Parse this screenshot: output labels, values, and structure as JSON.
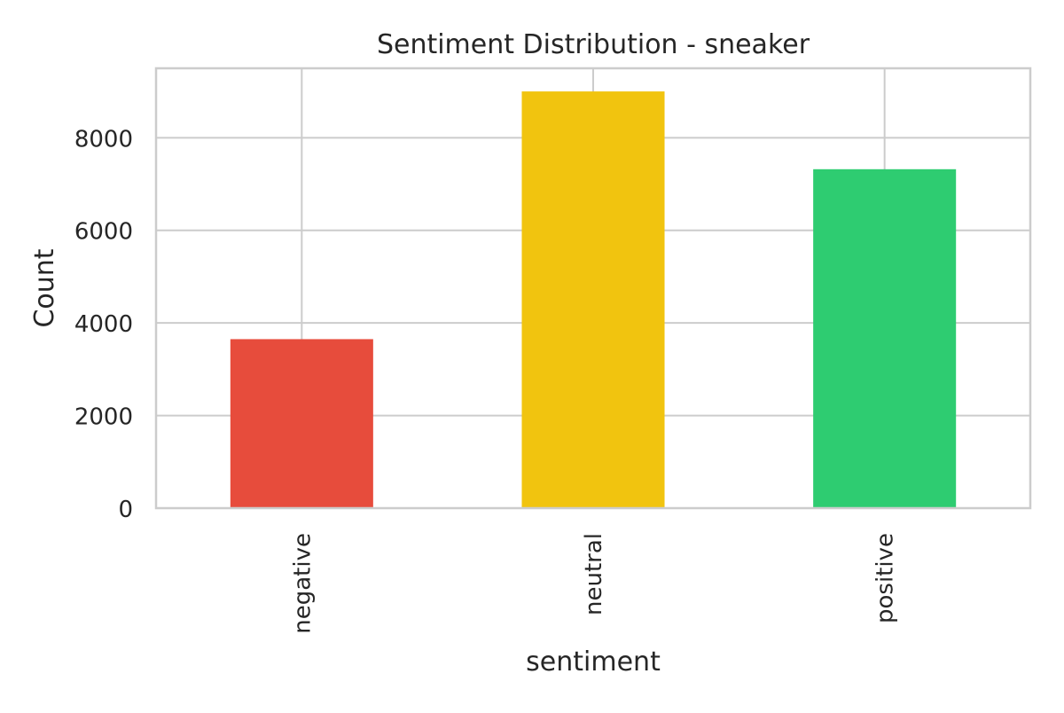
{
  "chart_data": {
    "type": "bar",
    "title": "Sentiment Distribution - sneaker",
    "xlabel": "sentiment",
    "ylabel": "Count",
    "categories": [
      "negative",
      "neutral",
      "positive"
    ],
    "values": [
      3650,
      9000,
      7320
    ],
    "colors": [
      "#e74c3c",
      "#f1c40f",
      "#2ecc71"
    ],
    "ylim": [
      0,
      9500
    ],
    "yticks": [
      0,
      2000,
      4000,
      6000,
      8000
    ],
    "ytick_labels": [
      "0",
      "2000",
      "4000",
      "6000",
      "8000"
    ],
    "grid": true,
    "legend": "none",
    "xtick_rotation": "vertical"
  }
}
